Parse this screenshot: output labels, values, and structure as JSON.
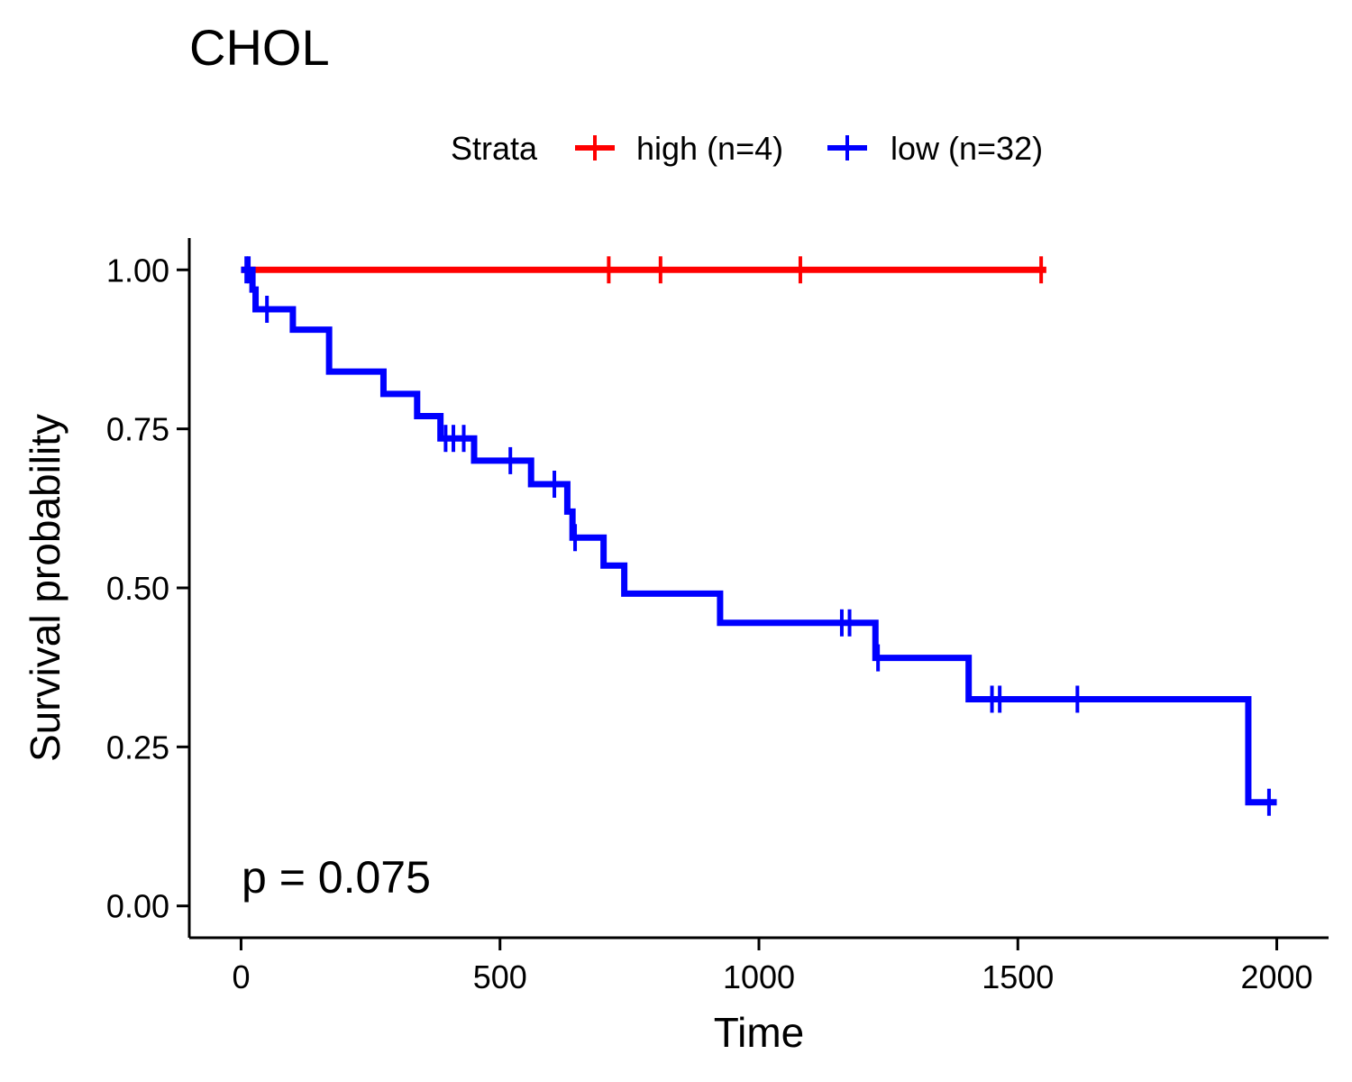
{
  "chart_data": {
    "type": "line",
    "title": "CHOL",
    "xlabel": "Time",
    "ylabel": "Survival probability",
    "xlim": [
      -100,
      2100
    ],
    "ylim": [
      -0.05,
      1.05
    ],
    "x_ticks": [
      0,
      500,
      1000,
      1500,
      2000
    ],
    "x_tick_labels": [
      "0",
      "500",
      "1000",
      "1500",
      "2000"
    ],
    "y_ticks": [
      0,
      0.25,
      0.5,
      0.75,
      1.0
    ],
    "y_tick_labels": [
      "0.00",
      "0.25",
      "0.50",
      "0.75",
      "1.00"
    ],
    "grid": false,
    "legend": {
      "title": "Strata",
      "position": "top",
      "entries": [
        "high (n=4)",
        "low (n=32)"
      ]
    },
    "annotation": "p = 0.075",
    "series": [
      {
        "name": "high (n=4)",
        "color": "#ff0000",
        "step_x": [
          0,
          1555
        ],
        "step_y": [
          1.0,
          1.0
        ],
        "censor_x": [
          710,
          810,
          1080,
          1545
        ],
        "censor_y": [
          1.0,
          1.0,
          1.0,
          1.0
        ]
      },
      {
        "name": "low (n=32)",
        "color": "#0000ff",
        "step_x": [
          0,
          15,
          22,
          28,
          100,
          170,
          275,
          340,
          385,
          450,
          560,
          630,
          640,
          700,
          740,
          925,
          1225,
          1405,
          1945,
          2000
        ],
        "step_y": [
          1.0,
          1.0,
          0.969,
          0.938,
          0.906,
          0.84,
          0.805,
          0.77,
          0.735,
          0.7,
          0.663,
          0.62,
          0.579,
          0.535,
          0.491,
          0.445,
          0.39,
          0.325,
          0.163,
          0.163
        ],
        "censor_x": [
          10,
          15,
          50,
          395,
          410,
          430,
          520,
          605,
          645,
          1160,
          1175,
          1230,
          1450,
          1465,
          1615,
          1985
        ],
        "censor_y": [
          1.0,
          1.0,
          0.938,
          0.735,
          0.735,
          0.735,
          0.7,
          0.663,
          0.579,
          0.445,
          0.445,
          0.39,
          0.325,
          0.325,
          0.325,
          0.163
        ]
      }
    ]
  }
}
